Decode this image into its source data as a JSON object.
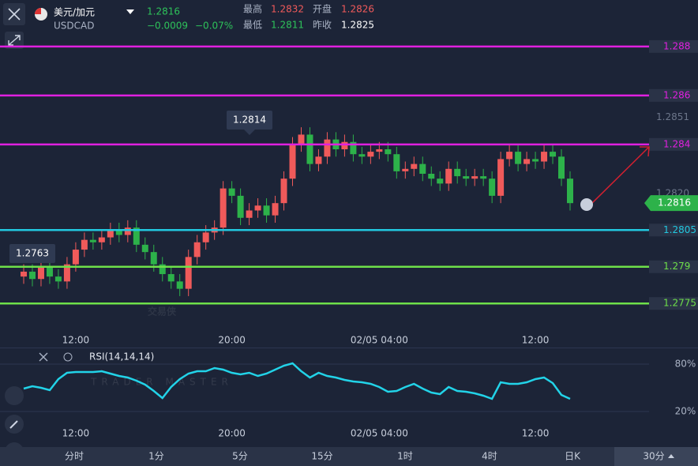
{
  "header": {
    "title": "美元/加元",
    "symbol": "USDCAD",
    "price": "1.2816",
    "change": "−0.0009",
    "change_pct": "−0.07%",
    "stats": [
      {
        "label": "最高",
        "value": "1.2832"
      },
      {
        "label": "开盘",
        "value": "1.2826"
      },
      {
        "label": "最低",
        "value": "1.2811"
      },
      {
        "label": "昨收",
        "value": "1.2825"
      }
    ]
  },
  "watermark": {
    "main": "交易侠",
    "sub": "TRADER MASTER"
  },
  "tabs": [
    "分时",
    "1分",
    "5分",
    "15分",
    "1时",
    "4时",
    "日K",
    "30分"
  ],
  "chart_data": [
    {
      "type": "candlestick",
      "categories": [
        null,
        null,
        null,
        null,
        null,
        null,
        "12:00",
        null,
        null,
        null,
        null,
        null,
        null,
        null,
        null,
        null,
        null,
        null,
        null,
        null,
        null,
        null,
        null,
        null,
        "20:00",
        null,
        null,
        null,
        null,
        null,
        null,
        null,
        null,
        null,
        null,
        null,
        null,
        null,
        null,
        null,
        null,
        "02/05 04:00",
        null,
        null,
        null,
        null,
        null,
        null,
        null,
        null,
        null,
        null,
        null,
        null,
        null,
        null,
        null,
        null,
        null,
        "12:00",
        null,
        null,
        null,
        null
      ],
      "open": [
        1.2786,
        1.2788,
        1.2785,
        1.279,
        1.2786,
        1.2784,
        1.2791,
        1.2797,
        1.2801,
        1.28,
        1.2802,
        1.2805,
        1.2803,
        1.2806,
        1.2799,
        1.2796,
        1.2791,
        1.2787,
        1.2784,
        1.2781,
        1.2794,
        1.28,
        1.2804,
        1.2806,
        1.2822,
        1.2819,
        1.281,
        1.2813,
        1.2815,
        1.2811,
        1.2816,
        1.2826,
        1.284,
        1.2844,
        1.2832,
        1.2835,
        1.2842,
        1.2838,
        1.2841,
        1.2836,
        1.2835,
        1.2837,
        1.2838,
        1.2836,
        1.2829,
        1.283,
        1.2832,
        1.2828,
        1.2826,
        1.2824,
        1.283,
        1.2827,
        1.2826,
        1.2827,
        1.2826,
        1.2819,
        1.2834,
        1.2837,
        1.2832,
        1.2834,
        1.2833,
        1.2837,
        1.2835,
        1.2826
      ],
      "high": [
        1.2791,
        1.2791,
        1.2793,
        1.2793,
        1.2789,
        1.2794,
        1.28,
        1.2804,
        1.2804,
        1.2805,
        1.2808,
        1.2808,
        1.2809,
        1.2809,
        1.2802,
        1.2799,
        1.2794,
        1.279,
        1.2787,
        1.2797,
        1.2803,
        1.2807,
        1.2809,
        1.2825,
        1.2825,
        1.2822,
        1.2816,
        1.2818,
        1.2818,
        1.2819,
        1.2829,
        1.2843,
        1.2847,
        1.2847,
        1.2838,
        1.2845,
        1.2845,
        1.2844,
        1.2844,
        1.2839,
        1.284,
        1.2841,
        1.2841,
        1.2839,
        1.2833,
        1.2835,
        1.2835,
        1.2831,
        1.2829,
        1.2833,
        1.2833,
        1.283,
        1.283,
        1.283,
        1.2829,
        1.2837,
        1.284,
        1.284,
        1.2837,
        1.2837,
        1.284,
        1.284,
        1.2838,
        1.2829
      ],
      "low": [
        1.2783,
        1.2782,
        1.2782,
        1.2783,
        1.2781,
        1.2781,
        1.2788,
        1.2794,
        1.2797,
        1.2797,
        1.2799,
        1.28,
        1.28,
        1.2796,
        1.2793,
        1.2788,
        1.2784,
        1.2781,
        1.2778,
        1.2778,
        1.2791,
        1.2797,
        1.2801,
        1.2803,
        1.2816,
        1.2807,
        1.2807,
        1.281,
        1.2808,
        1.2808,
        1.2813,
        1.2823,
        1.2837,
        1.2829,
        1.2829,
        1.2832,
        1.2835,
        1.2835,
        1.2833,
        1.2832,
        1.2832,
        1.2834,
        1.2833,
        1.2826,
        1.2826,
        1.2827,
        1.2825,
        1.2823,
        1.2821,
        1.2821,
        1.2824,
        1.2823,
        1.2823,
        1.2823,
        1.2816,
        1.2816,
        1.2831,
        1.2829,
        1.2829,
        1.283,
        1.283,
        1.2832,
        1.2823,
        1.2813
      ],
      "close": [
        1.2788,
        1.2785,
        1.279,
        1.2786,
        1.2784,
        1.2791,
        1.2797,
        1.2801,
        1.28,
        1.2802,
        1.2805,
        1.2803,
        1.2806,
        1.2799,
        1.2796,
        1.2791,
        1.2787,
        1.2784,
        1.2781,
        1.2794,
        1.28,
        1.2804,
        1.2806,
        1.2822,
        1.2819,
        1.281,
        1.2813,
        1.2815,
        1.2811,
        1.2816,
        1.2826,
        1.284,
        1.2844,
        1.2832,
        1.2835,
        1.2842,
        1.2838,
        1.2841,
        1.2836,
        1.2835,
        1.2837,
        1.2838,
        1.2836,
        1.2829,
        1.283,
        1.2832,
        1.2828,
        1.2826,
        1.2824,
        1.283,
        1.2827,
        1.2826,
        1.2827,
        1.2826,
        1.2819,
        1.2834,
        1.2837,
        1.2832,
        1.2834,
        1.2833,
        1.2837,
        1.2835,
        1.2826,
        1.2816
      ],
      "up_color": "#f05a5a",
      "down_color": "#2db24a",
      "ylim": [
        1.2757,
        1.2899
      ],
      "yticks": [
        1.2851,
        {
          "value": 1.282,
          "label": "1.2820"
        }
      ],
      "levels": [
        {
          "value": 1.288,
          "color": "#e020e0"
        },
        {
          "value": 1.286,
          "color": "#e020e0"
        },
        {
          "value": 1.284,
          "color": "#e020e0"
        },
        {
          "value": 1.2805,
          "color": "#22c8e0"
        },
        {
          "value": 1.279,
          "color": "#6ee04a"
        },
        {
          "value": 1.2775,
          "color": "#6ee04a"
        }
      ],
      "last_price": 1.2816,
      "last_color": "#2db24a",
      "annotations": [
        1.2814,
        1.2763
      ]
    },
    {
      "type": "line",
      "title": "RSI(14,14,14)",
      "categories": [
        null,
        null,
        null,
        null,
        null,
        null,
        "12:00",
        null,
        null,
        null,
        null,
        null,
        null,
        null,
        null,
        null,
        null,
        null,
        null,
        null,
        null,
        null,
        null,
        null,
        "20:00",
        null,
        null,
        null,
        null,
        null,
        null,
        null,
        null,
        null,
        null,
        null,
        null,
        null,
        null,
        null,
        null,
        "02/05 04:00",
        null,
        null,
        null,
        null,
        null,
        null,
        null,
        null,
        null,
        null,
        null,
        null,
        null,
        null,
        null,
        null,
        null,
        "12:00",
        null,
        null,
        null,
        null
      ],
      "series": [
        {
          "color": "#22d3e8",
          "values": [
            49,
            52,
            50,
            47,
            61,
            69,
            70,
            70,
            70,
            71,
            68,
            65,
            63,
            59,
            54,
            46,
            37,
            51,
            61,
            68,
            71,
            71,
            75,
            73,
            69,
            67,
            69,
            65,
            68,
            73,
            78,
            81,
            71,
            63,
            69,
            65,
            63,
            60,
            58,
            57,
            55,
            51,
            45,
            46,
            51,
            55,
            49,
            44,
            42,
            51,
            46,
            45,
            43,
            40,
            36,
            57,
            55,
            55,
            57,
            61,
            63,
            56,
            41,
            36
          ]
        }
      ],
      "ylim": [
        10,
        90
      ],
      "yticks": [
        {
          "value": 80,
          "label": "80%"
        },
        {
          "value": 20,
          "label": "20%"
        }
      ]
    }
  ]
}
